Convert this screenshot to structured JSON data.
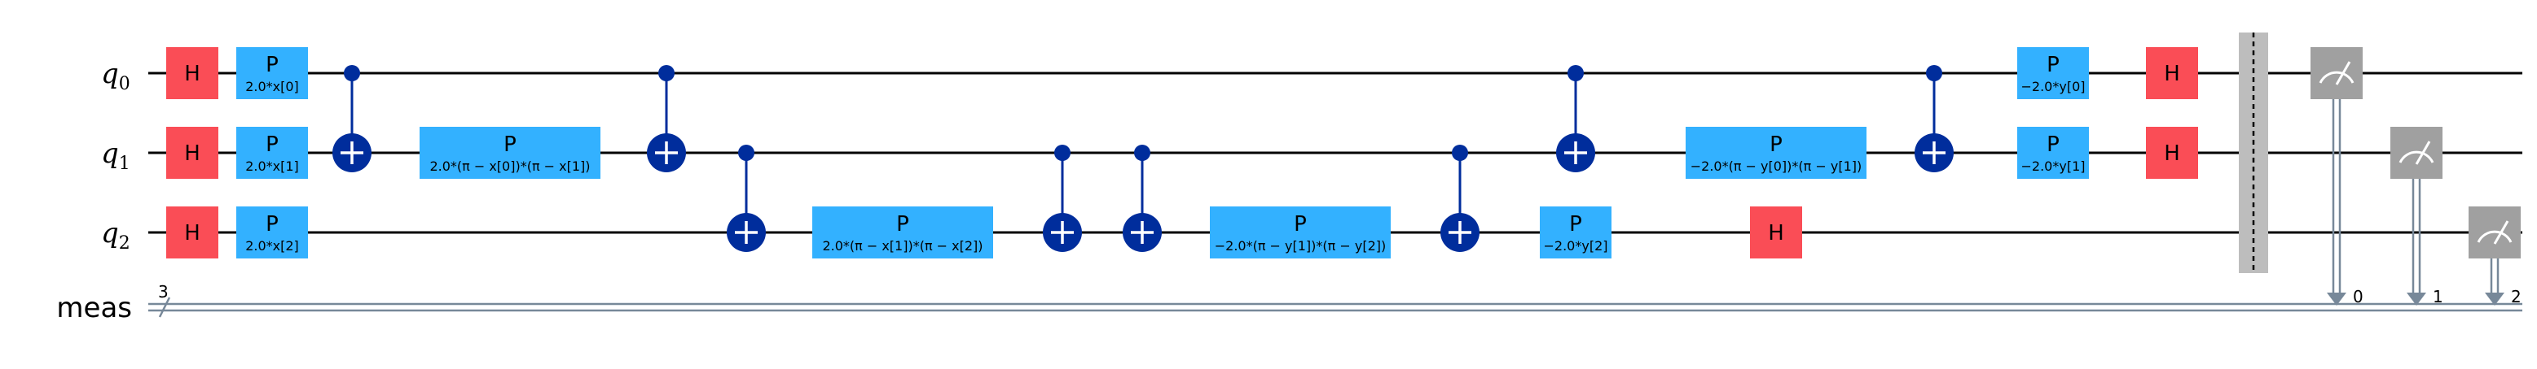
{
  "registers": [
    {
      "name": "q",
      "sub": "0"
    },
    {
      "name": "q",
      "sub": "1"
    },
    {
      "name": "q",
      "sub": "2"
    }
  ],
  "classical": {
    "name": "meas",
    "size": "3",
    "bits": [
      "0",
      "1",
      "2"
    ]
  },
  "gates": [
    {
      "type": "h",
      "qubit": 0,
      "col": 0,
      "name": "H"
    },
    {
      "type": "h",
      "qubit": 1,
      "col": 0,
      "name": "H"
    },
    {
      "type": "h",
      "qubit": 2,
      "col": 0,
      "name": "H"
    },
    {
      "type": "p",
      "qubit": 0,
      "col": 1,
      "name": "P",
      "param": "2.0*x[0]"
    },
    {
      "type": "p",
      "qubit": 1,
      "col": 1,
      "name": "P",
      "param": "2.0*x[1]"
    },
    {
      "type": "p",
      "qubit": 2,
      "col": 1,
      "name": "P",
      "param": "2.0*x[2]"
    },
    {
      "type": "cx",
      "control": 0,
      "target": 1,
      "col": 2
    },
    {
      "type": "p",
      "qubit": 1,
      "col": 3,
      "name": "P",
      "param": "2.0*(π − x[0])*(π − x[1])",
      "wide": true
    },
    {
      "type": "cx",
      "control": 0,
      "target": 1,
      "col": 4
    },
    {
      "type": "cx",
      "control": 1,
      "target": 2,
      "col": 5
    },
    {
      "type": "p",
      "qubit": 2,
      "col": 6,
      "name": "P",
      "param": "2.0*(π − x[1])*(π − x[2])",
      "wide": true
    },
    {
      "type": "cx",
      "control": 1,
      "target": 2,
      "col": 7
    },
    {
      "type": "cx",
      "control": 1,
      "target": 2,
      "col": 8
    },
    {
      "type": "p",
      "qubit": 2,
      "col": 9,
      "name": "P",
      "param": "−2.0*(π − y[1])*(π − y[2])",
      "wide": true
    },
    {
      "type": "cx",
      "control": 1,
      "target": 2,
      "col": 10
    },
    {
      "type": "cx",
      "control": 0,
      "target": 1,
      "col": 11
    },
    {
      "type": "p",
      "qubit": 2,
      "col": 11,
      "name": "P",
      "param": "−2.0*y[2]"
    },
    {
      "type": "p",
      "qubit": 1,
      "col": 12,
      "name": "P",
      "param": "−2.0*(π − y[0])*(π − y[1])",
      "wide": true
    },
    {
      "type": "h",
      "qubit": 2,
      "col": 12,
      "name": "H"
    },
    {
      "type": "cx",
      "control": 0,
      "target": 1,
      "col": 13
    },
    {
      "type": "p",
      "qubit": 0,
      "col": 14,
      "name": "P",
      "param": "−2.0*y[0]"
    },
    {
      "type": "p",
      "qubit": 1,
      "col": 14,
      "name": "P",
      "param": "−2.0*y[1]"
    },
    {
      "type": "h",
      "qubit": 0,
      "col": 15,
      "name": "H"
    },
    {
      "type": "h",
      "qubit": 1,
      "col": 15,
      "name": "H"
    },
    {
      "type": "barrier",
      "col": 16
    },
    {
      "type": "measure",
      "qubit": 0,
      "bit": 0,
      "col": 17
    },
    {
      "type": "measure",
      "qubit": 1,
      "bit": 1,
      "col": 18
    },
    {
      "type": "measure",
      "qubit": 2,
      "bit": 2,
      "col": 19
    }
  ],
  "colors": {
    "h_gate": "#fa4d56",
    "p_gate": "#33b1ff",
    "cx": "#002d9c",
    "measure": "#a0a0a0",
    "classical_wire": "#778899",
    "barrier": "#bdbdbd"
  }
}
